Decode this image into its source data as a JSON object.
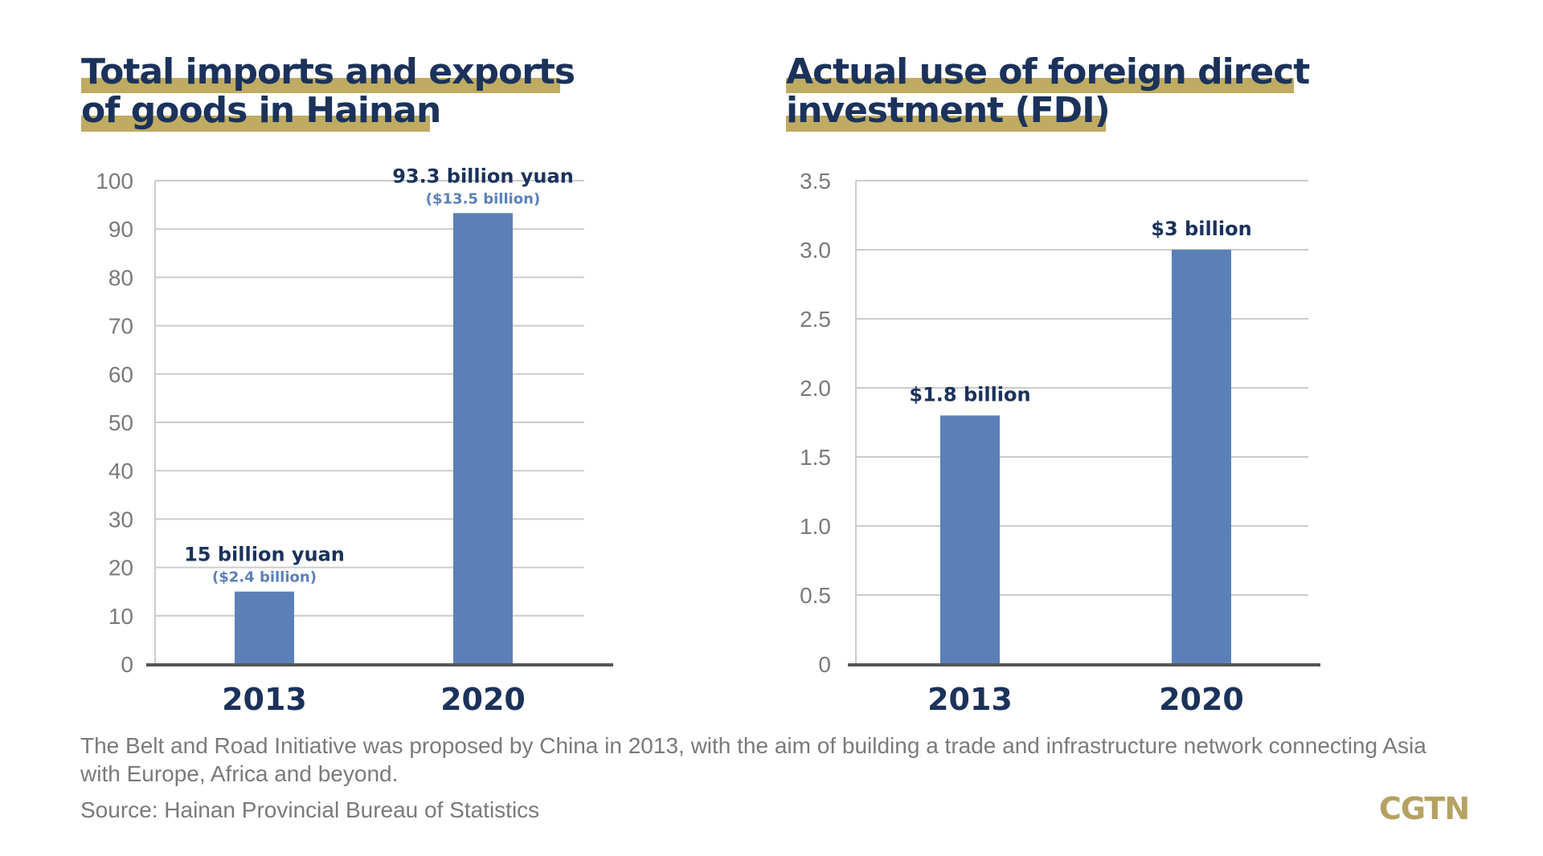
{
  "colors": {
    "bar": "#5b80b8",
    "title": "#1b325a",
    "highlight": "#bfab62",
    "axis": "#555555",
    "grid": "#cccccc",
    "text_gray": "#7a7a7a"
  },
  "left_title": [
    "Total imports and exports",
    "of goods in Hainan"
  ],
  "right_title": [
    "Actual use of foreign direct",
    "investment (FDI)"
  ],
  "chart_data": [
    {
      "type": "bar",
      "title": "Total imports and exports of goods in Hainan",
      "categories": [
        "2013",
        "2020"
      ],
      "values": [
        15,
        93.3
      ],
      "data_labels": [
        "15 billion yuan",
        "93.3 billion yuan"
      ],
      "data_sublabels": [
        "($2.4 billion)",
        "($13.5 billion)"
      ],
      "ylim": [
        0,
        100
      ],
      "yticks": [
        "0",
        "10",
        "20",
        "30",
        "40",
        "50",
        "60",
        "70",
        "80",
        "90",
        "100"
      ],
      "ytick_values": [
        0,
        10,
        20,
        30,
        40,
        50,
        60,
        70,
        80,
        90,
        100
      ],
      "xlabel": "",
      "ylabel": "",
      "grid": true
    },
    {
      "type": "bar",
      "title": "Actual use of foreign direct investment (FDI)",
      "categories": [
        "2013",
        "2020"
      ],
      "values": [
        1.8,
        3.0
      ],
      "data_labels": [
        "$1.8 billion",
        "$3 billion"
      ],
      "data_sublabels": [],
      "ylim": [
        0,
        3.5
      ],
      "yticks": [
        "0",
        "0.5",
        "1.0",
        "1.5",
        "2.0",
        "2.5",
        "3.0",
        "3.5"
      ],
      "ytick_values": [
        0,
        0.5,
        1.0,
        1.5,
        2.0,
        2.5,
        3.0,
        3.5
      ],
      "xlabel": "",
      "ylabel": "",
      "grid": true
    }
  ],
  "footer": {
    "note_line1": "The Belt and Road Initiative was proposed by China in 2013, with the aim of building a trade and infrastructure network connecting Asia",
    "note_line2": "with Europe, Africa and beyond.",
    "source": "Source: Hainan Provincial Bureau of Statistics",
    "logo": "CGTN"
  }
}
